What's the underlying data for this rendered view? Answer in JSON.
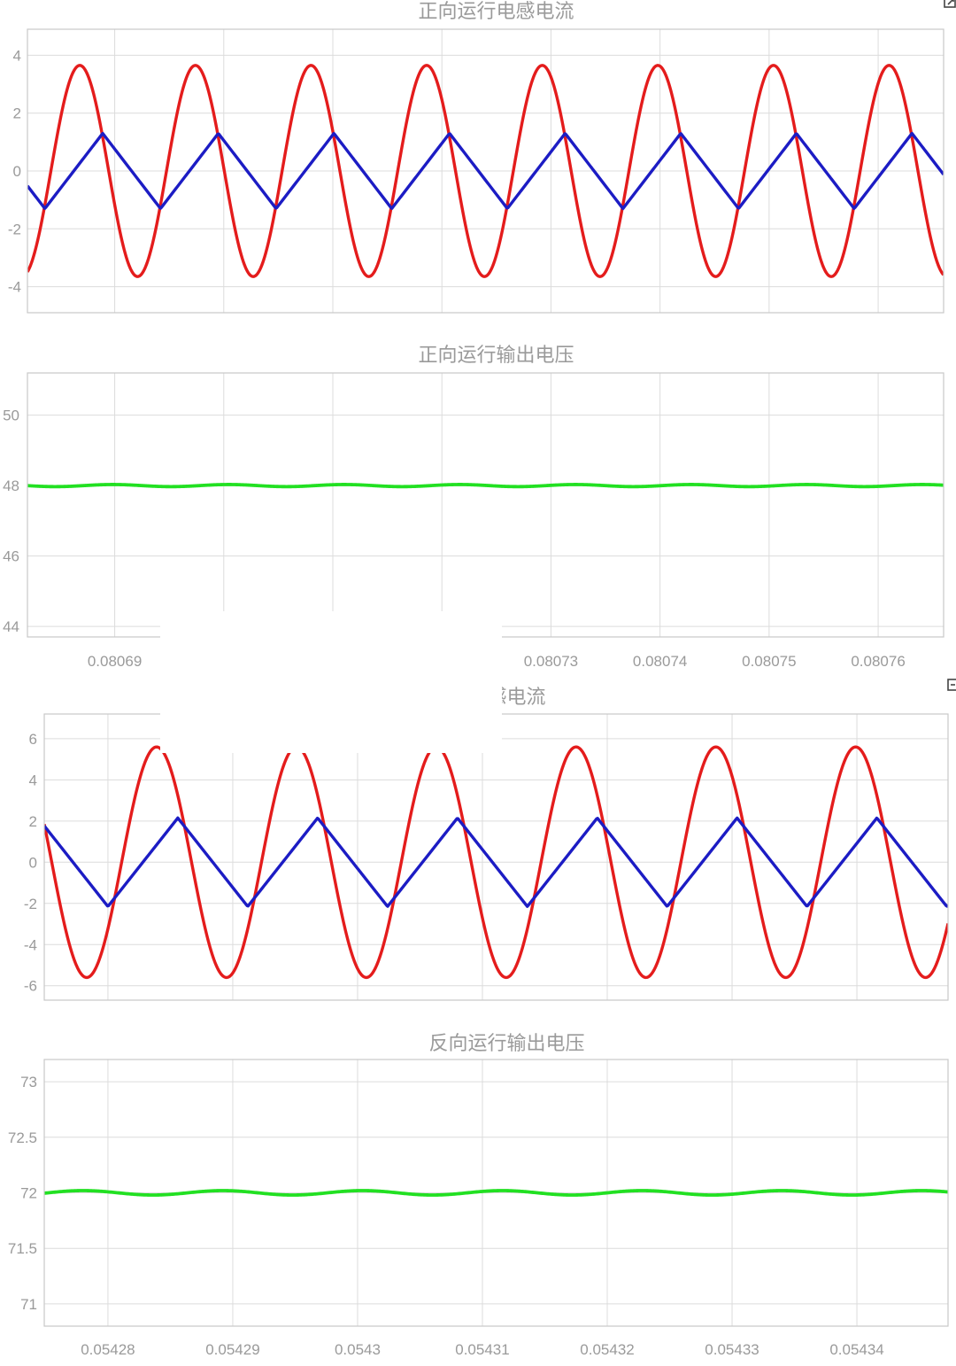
{
  "chart_data": [
    {
      "type": "line",
      "title": "正向运行电感电流",
      "xlabel": "",
      "ylabel": "",
      "xlim": [
        0.080682,
        0.080766
      ],
      "ylim": [
        -4.9,
        4.9
      ],
      "xticks": [
        0.08069,
        0.0807,
        0.08071,
        0.08072,
        0.08073,
        0.08074,
        0.08075,
        0.08076
      ],
      "xtick_labels": [],
      "yticks": [
        -4,
        -2,
        0,
        2,
        4
      ],
      "ytick_labels": [
        "-4",
        "-2",
        "0",
        "2",
        "4"
      ],
      "grid": true,
      "series": [
        {
          "color": "#e41c1c",
          "shape": "sine",
          "period": 1.06e-05,
          "amplitude": 3.65,
          "peak_x": 0.0806868
        },
        {
          "color": "#1c1cc4",
          "shape": "triangle",
          "period": 1.06e-05,
          "amplitude": 1.3,
          "peak_x": 0.0806889
        }
      ]
    },
    {
      "type": "line",
      "title": "正向运行输出电压",
      "xlabel": "",
      "ylabel": "",
      "xlim": [
        0.080682,
        0.080766
      ],
      "ylim": [
        43.7,
        51.2
      ],
      "xticks": [
        0.08069,
        0.0807,
        0.08071,
        0.08072,
        0.08073,
        0.08074,
        0.08075,
        0.08076
      ],
      "xtick_labels": [
        "0.08069",
        "",
        "",
        "",
        "0.08073",
        "0.08074",
        "0.08075",
        "0.08076"
      ],
      "yticks": [
        44,
        46,
        48,
        50
      ],
      "ytick_labels": [
        "44",
        "46",
        "48",
        "50"
      ],
      "grid": true,
      "series": [
        {
          "color": "#22e022",
          "shape": "ripple",
          "mean": 48.0,
          "amplitude": 0.03,
          "period": 1.06e-05
        }
      ]
    },
    {
      "type": "line",
      "title": "电感电流",
      "xlabel": "",
      "ylabel": "",
      "xlim": [
        0.0542749,
        0.0543473
      ],
      "ylim": [
        -6.7,
        7.2
      ],
      "xticks": [
        0.05428,
        0.05429,
        0.0543,
        0.05431,
        0.05432,
        0.05433,
        0.05434
      ],
      "xtick_labels": [],
      "yticks": [
        -6,
        -4,
        -2,
        0,
        2,
        4,
        6
      ],
      "ytick_labels": [
        "-6",
        "-4",
        "-2",
        "0",
        "2",
        "4",
        "6"
      ],
      "grid": true,
      "series": [
        {
          "color": "#e41c1c",
          "shape": "sine",
          "period": 1.12e-05,
          "amplitude": 5.6,
          "peak_x": 0.0542839
        },
        {
          "color": "#1c1cc4",
          "shape": "triangle",
          "period": 1.12e-05,
          "amplitude": 2.15,
          "peak_x": 0.0542856
        }
      ]
    },
    {
      "type": "line",
      "title": "反向运行输出电压",
      "xlabel": "",
      "ylabel": "",
      "xlim": [
        0.0542749,
        0.0543473
      ],
      "ylim": [
        70.8,
        73.2
      ],
      "xticks": [
        0.05428,
        0.05429,
        0.0543,
        0.05431,
        0.05432,
        0.05433,
        0.05434
      ],
      "xtick_labels": [
        "0.05428",
        "0.05429",
        "0.0543",
        "0.05431",
        "0.05432",
        "0.05433",
        "0.05434"
      ],
      "yticks": [
        71,
        71.5,
        72,
        72.5,
        73
      ],
      "ytick_labels": [
        "71",
        "71.5",
        "72",
        "72.5",
        "73"
      ],
      "grid": true,
      "series": [
        {
          "color": "#22e022",
          "shape": "ripple",
          "mean": 72.0,
          "amplitude": 0.02,
          "period": 1.12e-05
        }
      ]
    }
  ]
}
